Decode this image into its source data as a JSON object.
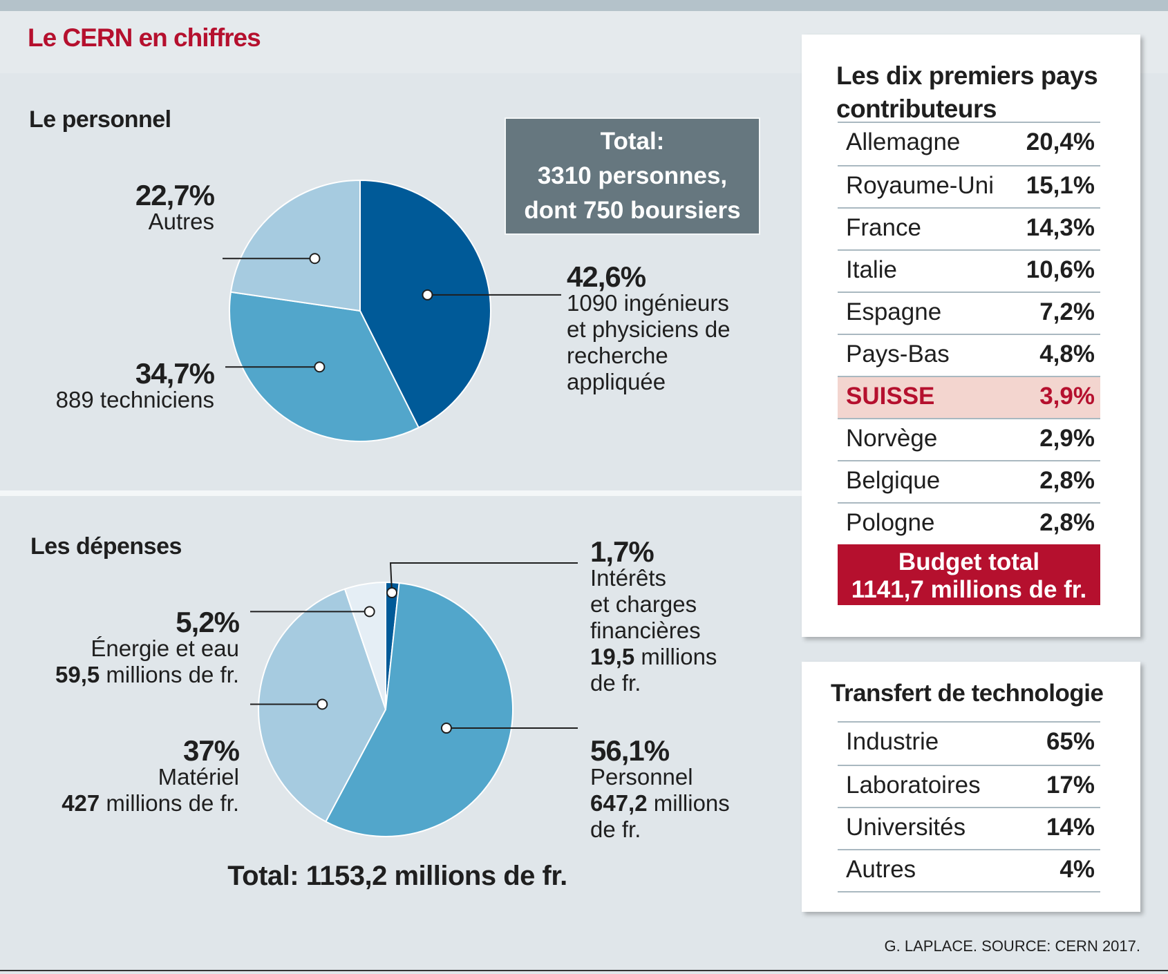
{
  "title": "Le CERN en chiffres",
  "personnel": {
    "title": "Le personnel",
    "total_box": [
      "Total:",
      "3310 personnes,",
      "dont 750 boursiers"
    ]
  },
  "depenses": {
    "title": "Les dépenses",
    "total": "Total: 1153,2 millions de fr."
  },
  "chart_data": [
    {
      "type": "pie",
      "title": "Le personnel",
      "slices": [
        {
          "pct_label": "42,6%",
          "value": 42.6,
          "lines": [
            "1090 ingénieurs",
            "et physiciens de",
            "recherche",
            "appliquée"
          ],
          "color": "#005a98"
        },
        {
          "pct_label": "34,7%",
          "value": 34.7,
          "lines": [
            "889 techniciens"
          ],
          "color": "#52a6cb"
        },
        {
          "pct_label": "22,7%",
          "value": 22.7,
          "lines": [
            "Autres"
          ],
          "color": "#a6cbe0"
        }
      ]
    },
    {
      "type": "pie",
      "title": "Les dépenses",
      "slices": [
        {
          "pct_label": "1,7%",
          "value": 1.7,
          "lines": [
            "Intérêts",
            "et charges",
            "financières"
          ],
          "amount_bold": "19,5",
          "amount_rest": " millions",
          "amount_tail": "de fr.",
          "color": "#005a98"
        },
        {
          "pct_label": "56,1%",
          "value": 56.1,
          "lines": [
            "Personnel"
          ],
          "amount_bold": "647,2",
          "amount_rest": " millions",
          "amount_tail": "de fr.",
          "color": "#52a6cb"
        },
        {
          "pct_label": "37%",
          "value": 37,
          "lines": [
            "Matériel"
          ],
          "amount_bold": "427",
          "amount_rest": " millions de fr.",
          "color": "#a6cbe0"
        },
        {
          "pct_label": "5,2%",
          "value": 5.2,
          "lines": [
            "Énergie et eau"
          ],
          "amount_bold": "59,5",
          "amount_rest": " millions de fr.",
          "color": "#e5eef5"
        }
      ]
    },
    {
      "type": "table",
      "title": "Les dix premiers pays contributeurs",
      "rows": [
        {
          "country": "Allemagne",
          "value": "20,4%"
        },
        {
          "country": "Royaume-Uni",
          "value": "15,1%"
        },
        {
          "country": "France",
          "value": "14,3%"
        },
        {
          "country": "Italie",
          "value": "10,6%"
        },
        {
          "country": "Espagne",
          "value": "7,2%"
        },
        {
          "country": "Pays-Bas",
          "value": "4,8%"
        },
        {
          "country": "SUISSE",
          "value": "3,9%",
          "highlight": true
        },
        {
          "country": "Norvège",
          "value": "2,9%"
        },
        {
          "country": "Belgique",
          "value": "2,8%"
        },
        {
          "country": "Pologne",
          "value": "2,8%"
        }
      ],
      "footer": [
        "Budget total",
        "1141,7 millions de fr."
      ]
    },
    {
      "type": "table",
      "title": "Transfert de technologie",
      "rows": [
        {
          "country": "Industrie",
          "value": "65%"
        },
        {
          "country": "Laboratoires",
          "value": "17%"
        },
        {
          "country": "Universités",
          "value": "14%"
        },
        {
          "country": "Autres",
          "value": "4%"
        }
      ]
    }
  ],
  "contributors_title": [
    "Les dix premiers pays",
    "contributeurs"
  ],
  "source": "G. LAPLACE. SOURCE: CERN 2017."
}
